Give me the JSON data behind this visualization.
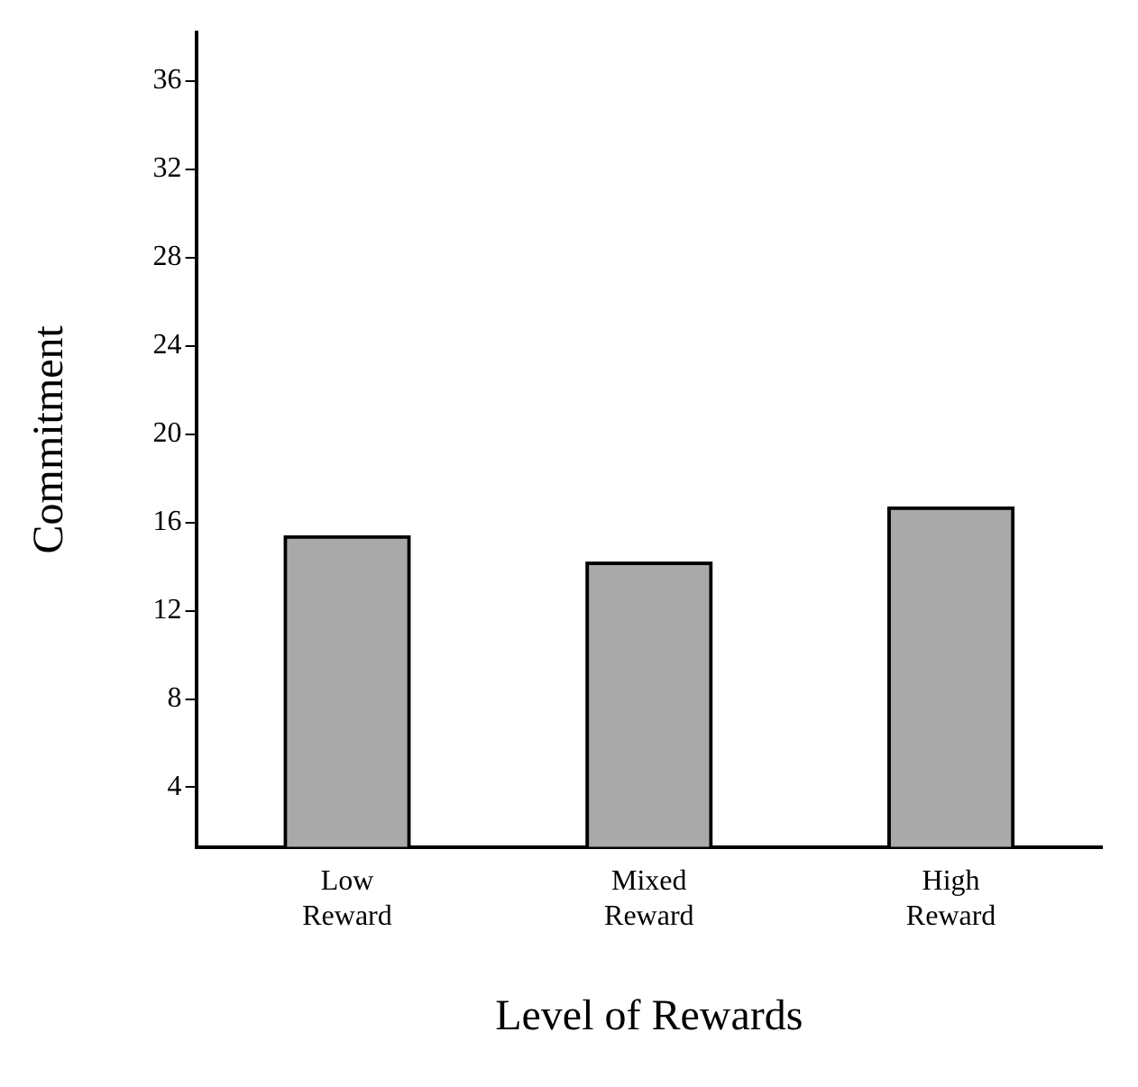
{
  "chart_data": {
    "type": "bar",
    "xlabel": "Level of Rewards",
    "ylabel": "Commitment",
    "categories": [
      "Low Reward",
      "Mixed Reward",
      "High Reward"
    ],
    "values": [
      15.4,
      14.2,
      16.7
    ],
    "color": "#a9a9a9",
    "ylim": [
      1.3,
      38.2
    ],
    "yticks": [
      4,
      8,
      12,
      16,
      20,
      24,
      28,
      32,
      36
    ],
    "grid": false,
    "legend": false
  }
}
